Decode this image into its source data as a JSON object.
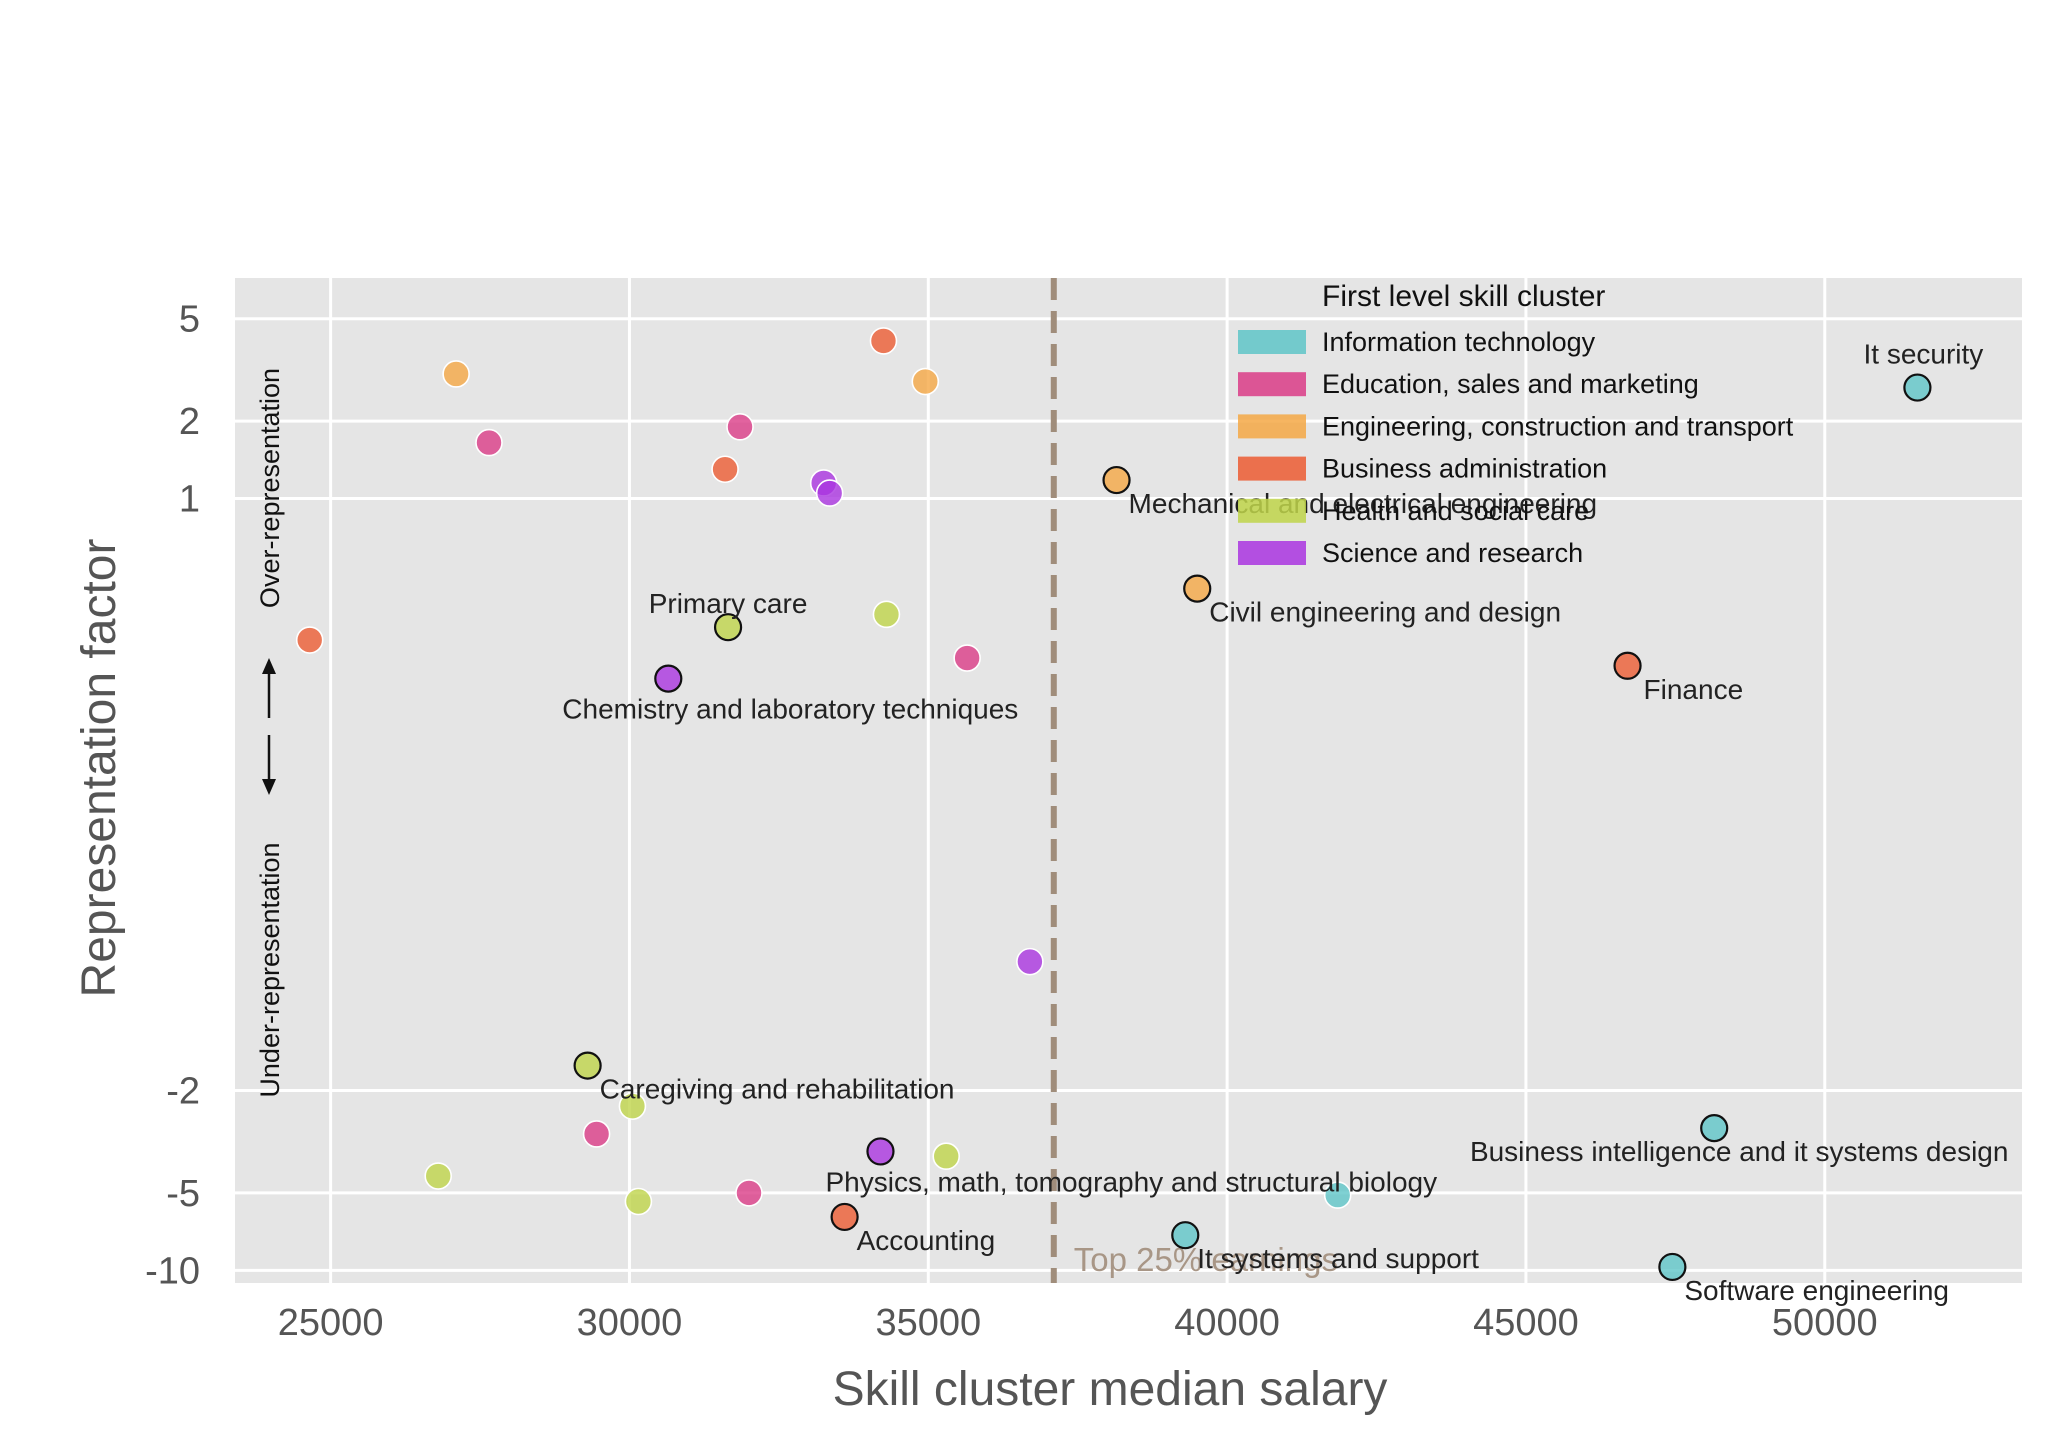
{
  "chart_data": {
    "type": "scatter",
    "xlabel": "Skill cluster median salary",
    "ylabel": "Representation factor",
    "xlim": [
      23400,
      53300
    ],
    "ylim": [
      -11.2,
      7.2
    ],
    "y_scale": "symlog",
    "x_ticks": [
      25000,
      30000,
      35000,
      40000,
      45000,
      50000
    ],
    "y_ticks": [
      5,
      2,
      1,
      -2,
      -5,
      -10
    ],
    "x_tick_labels": [
      "25000",
      "30000",
      "35000",
      "40000",
      "45000",
      "50000"
    ],
    "y_tick_labels": [
      "5",
      "2",
      "1",
      "-2",
      "-5",
      "-10"
    ],
    "grid": true,
    "threshold": {
      "x": 37100,
      "label": "Top 25% earnings",
      "color": "#a08d7b"
    },
    "over_label": "Over-representation",
    "under_label": "Under-representation",
    "legend": {
      "title": "First level skill cluster",
      "placement": "top-right",
      "entries": [
        {
          "name": "Information technology",
          "color": "#5fc5c8"
        },
        {
          "name": "Education, sales and marketing",
          "color": "#db3c87"
        },
        {
          "name": "Engineering, construction and transport",
          "color": "#f5a845"
        },
        {
          "name": "Business administration",
          "color": "#ec5c33"
        },
        {
          "name": "Health and social care",
          "color": "#bfd54a"
        },
        {
          "name": "Science and research",
          "color": "#aa35e0"
        }
      ]
    },
    "points": [
      {
        "x": 51550,
        "y": 2.7,
        "group": 0,
        "label": "It security",
        "outlined": true
      },
      {
        "x": 48150,
        "y": -2.8,
        "group": 0,
        "label": "Business intelligence and it systems design",
        "outlined": true
      },
      {
        "x": 41850,
        "y": -5.1,
        "group": 0,
        "label": "",
        "outlined": false
      },
      {
        "x": 39300,
        "y": -7.3,
        "group": 0,
        "label": "It systems and support",
        "outlined": true
      },
      {
        "x": 47450,
        "y": -9.7,
        "group": 0,
        "label": "Software engineering",
        "outlined": true
      },
      {
        "x": 31850,
        "y": 1.9,
        "group": 1,
        "label": "",
        "outlined": false
      },
      {
        "x": 27650,
        "y": 1.65,
        "group": 1,
        "label": "",
        "outlined": false
      },
      {
        "x": 35650,
        "y": 0.38,
        "group": 1,
        "label": "",
        "outlined": false
      },
      {
        "x": 29450,
        "y": -2.95,
        "group": 1,
        "label": "",
        "outlined": false
      },
      {
        "x": 32000,
        "y": -5.0,
        "group": 1,
        "label": "",
        "outlined": false
      },
      {
        "x": 27100,
        "y": 3.05,
        "group": 2,
        "label": "",
        "outlined": false
      },
      {
        "x": 34950,
        "y": 2.85,
        "group": 2,
        "label": "",
        "outlined": false
      },
      {
        "x": 38150,
        "y": 1.18,
        "group": 2,
        "label": "Mechanical and electrical engineering",
        "outlined": true
      },
      {
        "x": 39500,
        "y": 0.65,
        "group": 2,
        "label": "Civil engineering and design",
        "outlined": true
      },
      {
        "x": 34250,
        "y": 4.1,
        "group": 3,
        "label": "",
        "outlined": false
      },
      {
        "x": 31600,
        "y": 1.3,
        "group": 3,
        "label": "",
        "outlined": false
      },
      {
        "x": 24650,
        "y": 0.45,
        "group": 3,
        "label": "",
        "outlined": false
      },
      {
        "x": 46700,
        "y": 0.35,
        "group": 3,
        "label": "Finance",
        "outlined": true
      },
      {
        "x": 33600,
        "y": -6.2,
        "group": 3,
        "label": "Accounting",
        "outlined": true
      },
      {
        "x": 31650,
        "y": 0.5,
        "group": 4,
        "label": "Primary care",
        "outlined": true
      },
      {
        "x": 34300,
        "y": 0.55,
        "group": 4,
        "label": "",
        "outlined": false
      },
      {
        "x": 29300,
        "y": -1.6,
        "group": 4,
        "label": "Caregiving and rehabilitation",
        "outlined": true
      },
      {
        "x": 30050,
        "y": -2.3,
        "group": 4,
        "label": "",
        "outlined": false
      },
      {
        "x": 35300,
        "y": -3.6,
        "group": 4,
        "label": "",
        "outlined": false
      },
      {
        "x": 26800,
        "y": -4.3,
        "group": 4,
        "label": "",
        "outlined": false
      },
      {
        "x": 30150,
        "y": -5.4,
        "group": 4,
        "label": "",
        "outlined": false
      },
      {
        "x": 33250,
        "y": 1.15,
        "group": 5,
        "label": "",
        "outlined": false
      },
      {
        "x": 33350,
        "y": 1.05,
        "group": 5,
        "label": "",
        "outlined": false
      },
      {
        "x": 30650,
        "y": 0.3,
        "group": 5,
        "label": "Chemistry and laboratory techniques",
        "outlined": true
      },
      {
        "x": 36700,
        "y": -0.8,
        "group": 5,
        "label": "",
        "outlined": false
      },
      {
        "x": 34200,
        "y": -3.45,
        "group": 5,
        "label": "Physics, math, tomography and structural biology",
        "outlined": true
      }
    ]
  }
}
